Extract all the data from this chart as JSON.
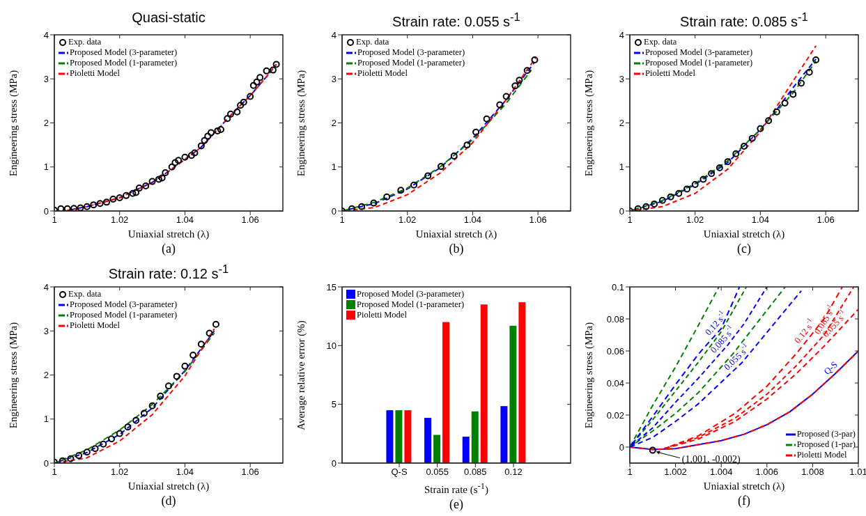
{
  "chart_data": [
    {
      "type": "line",
      "title": "Quasi-static",
      "xlabel": "Uniaxial stretch (λ)",
      "ylabel": "Engineering stress (MPa)",
      "xlim": [
        1,
        1.07
      ],
      "xticks": [
        1,
        1.02,
        1.04,
        1.06
      ],
      "ylim": [
        0,
        4
      ],
      "yticks": [
        0,
        1,
        2,
        3,
        4
      ],
      "legend": "top left",
      "annotations": [
        "(a)"
      ],
      "series": [
        {
          "name": "Exp. data",
          "type": "scatter",
          "marker": "circle",
          "color": "#000000",
          "x": [
            1,
            1.002,
            1.004,
            1.006,
            1.008,
            1.01,
            1.012,
            1.014,
            1.016,
            1.018,
            1.02,
            1.022,
            1.024,
            1.025,
            1.026,
            1.028,
            1.03,
            1.032,
            1.033,
            1.034,
            1.036,
            1.037,
            1.038,
            1.04,
            1.042,
            1.043,
            1.045,
            1.046,
            1.047,
            1.048,
            1.05,
            1.051,
            1.053,
            1.054,
            1.056,
            1.057,
            1.058,
            1.06,
            1.061,
            1.062,
            1.063,
            1.065,
            1.067,
            1.068
          ],
          "values": [
            0.02,
            0.05,
            0.05,
            0.06,
            0.07,
            0.1,
            0.14,
            0.17,
            0.2,
            0.27,
            0.3,
            0.35,
            0.4,
            0.42,
            0.52,
            0.57,
            0.67,
            0.72,
            0.75,
            0.87,
            1.0,
            1.1,
            1.15,
            1.22,
            1.26,
            1.32,
            1.48,
            1.6,
            1.7,
            1.78,
            1.82,
            1.85,
            2.1,
            2.2,
            2.25,
            2.4,
            2.47,
            2.6,
            2.85,
            2.93,
            3.03,
            3.18,
            3.2,
            3.33
          ]
        },
        {
          "name": "Proposed Model (3-parameter)",
          "color": "#0000ff",
          "line_style": "dashed",
          "x": [
            1.003,
            1.01,
            1.02,
            1.03,
            1.035,
            1.04,
            1.045,
            1.05,
            1.055,
            1.06,
            1.065,
            1.068
          ],
          "values": [
            0,
            0.1,
            0.3,
            0.65,
            0.9,
            1.17,
            1.45,
            1.85,
            2.25,
            2.62,
            3.05,
            3.33
          ]
        },
        {
          "name": "Proposed Model (1-parameter)",
          "color": "#008000",
          "line_style": "dashed"
        },
        {
          "name": "Pioletti Model",
          "color": "#ff0000",
          "line_style": "dashed",
          "x": [
            1.003,
            1.01,
            1.02,
            1.03,
            1.035,
            1.04,
            1.045,
            1.05,
            1.055,
            1.06,
            1.065,
            1.068
          ],
          "values": [
            0,
            0.1,
            0.3,
            0.65,
            0.9,
            1.17,
            1.45,
            1.85,
            2.25,
            2.62,
            3.05,
            3.33
          ]
        }
      ]
    },
    {
      "type": "line",
      "title": "Strain rate: 0.055 s$^{-1}$",
      "xlabel": "Uniaxial stretch (λ)",
      "ylabel": "Engineering stress (MPa)",
      "xlim": [
        1,
        1.07
      ],
      "xticks": [
        1,
        1.02,
        1.04,
        1.06
      ],
      "ylim": [
        0,
        4
      ],
      "yticks": [
        0,
        1,
        2,
        3,
        4
      ],
      "legend": "top left",
      "annotations": [
        "(b)"
      ],
      "series": [
        {
          "name": "Exp. data",
          "type": "scatter",
          "marker": "circle",
          "color": "#000000",
          "x": [
            1,
            1.003,
            1.006,
            1.0097,
            1.0137,
            1.018,
            1.022,
            1.0263,
            1.0303,
            1.0343,
            1.0383,
            1.041,
            1.0443,
            1.0483,
            1.0503,
            1.053,
            1.0543,
            1.0567,
            1.059
          ],
          "values": [
            0,
            0.05,
            0.1,
            0.18,
            0.32,
            0.47,
            0.59,
            0.8,
            1.01,
            1.25,
            1.5,
            1.79,
            2.09,
            2.41,
            2.6,
            2.84,
            2.97,
            3.19,
            3.43
          ]
        },
        {
          "name": "Proposed Model (3-parameter)",
          "color": "#0000ff",
          "line_style": "dashed",
          "x": [
            1,
            1.01,
            1.02,
            1.03,
            1.04,
            1.05,
            1.059
          ],
          "values": [
            0,
            0.17,
            0.5,
            0.98,
            1.65,
            2.5,
            3.38
          ]
        },
        {
          "name": "Proposed Model (1-parameter)",
          "color": "#008000",
          "line_style": "dashed",
          "x": [
            1,
            1.01,
            1.02,
            1.03,
            1.04,
            1.05,
            1.058
          ],
          "values": [
            0,
            0.2,
            0.52,
            1.0,
            1.62,
            2.42,
            3.2
          ]
        },
        {
          "name": "Pioletti Model",
          "color": "#ff0000",
          "line_style": "dashed",
          "x": [
            1,
            1.01,
            1.02,
            1.03,
            1.04,
            1.05,
            1.0595
          ],
          "values": [
            0,
            0.08,
            0.37,
            0.86,
            1.55,
            2.5,
            3.5
          ]
        }
      ]
    },
    {
      "type": "line",
      "title": "Strain rate: 0.085 s$^{-1}$",
      "xlabel": "Uniaxial stretch (λ)",
      "ylabel": "Engineering stress (MPa)",
      "xlim": [
        1,
        1.07
      ],
      "xticks": [
        1,
        1.02,
        1.04,
        1.06
      ],
      "ylim": [
        0,
        4
      ],
      "yticks": [
        0,
        1,
        2,
        3,
        4
      ],
      "legend": "top left",
      "annotations": [
        "(c)"
      ],
      "series": [
        {
          "name": "Exp. data",
          "type": "scatter",
          "marker": "circle",
          "color": "#000000",
          "x": [
            1,
            1.0025,
            1.005,
            1.0075,
            1.01,
            1.0125,
            1.015,
            1.0175,
            1.02,
            1.0225,
            1.025,
            1.0275,
            1.03,
            1.0325,
            1.035,
            1.0375,
            1.04,
            1.0425,
            1.045,
            1.0475,
            1.05,
            1.0525,
            1.055,
            1.057
          ],
          "values": [
            0,
            0.05,
            0.1,
            0.16,
            0.24,
            0.32,
            0.4,
            0.5,
            0.6,
            0.72,
            0.85,
            0.98,
            1.12,
            1.3,
            1.47,
            1.65,
            1.87,
            2.05,
            2.25,
            2.45,
            2.65,
            2.9,
            3.15,
            3.43
          ]
        },
        {
          "name": "Proposed Model (3-parameter)",
          "color": "#0000ff",
          "line_style": "dashed",
          "x": [
            1,
            1.01,
            1.02,
            1.03,
            1.04,
            1.045,
            1.05,
            1.057
          ],
          "values": [
            0,
            0.22,
            0.6,
            1.1,
            1.85,
            2.3,
            2.8,
            3.45
          ]
        },
        {
          "name": "Proposed Model (1-parameter)",
          "color": "#008000",
          "line_style": "dashed",
          "x": [
            1,
            1.01,
            1.02,
            1.03,
            1.04,
            1.05,
            1.057
          ],
          "values": [
            0,
            0.24,
            0.62,
            1.14,
            1.85,
            2.68,
            3.4
          ]
        },
        {
          "name": "Pioletti Model",
          "color": "#ff0000",
          "line_style": "dashed",
          "x": [
            1,
            1.01,
            1.02,
            1.03,
            1.04,
            1.05,
            1.057
          ],
          "values": [
            0,
            0.1,
            0.4,
            0.95,
            1.8,
            2.95,
            3.75
          ]
        }
      ]
    },
    {
      "type": "line",
      "title": "Strain rate: 0.12 s$^{-1}$",
      "xlabel": "Uniaxial stretch (λ)",
      "ylabel": "Engineering stress (MPa)",
      "xlim": [
        1,
        1.07
      ],
      "xticks": [
        1,
        1.02,
        1.04,
        1.06
      ],
      "ylim": [
        0,
        4
      ],
      "yticks": [
        0,
        1,
        2,
        3,
        4
      ],
      "legend": "top left",
      "annotations": [
        "(d)"
      ],
      "series": [
        {
          "name": "Exp. data",
          "type": "scatter",
          "marker": "circle",
          "color": "#000000",
          "x": [
            1,
            1.0025,
            1.005,
            1.0075,
            1.01,
            1.0125,
            1.015,
            1.0175,
            1.02,
            1.0225,
            1.025,
            1.0275,
            1.03,
            1.0325,
            1.035,
            1.0375,
            1.04,
            1.0425,
            1.045,
            1.0475,
            1.0495
          ],
          "values": [
            0.02,
            0.05,
            0.1,
            0.17,
            0.25,
            0.33,
            0.43,
            0.55,
            0.67,
            0.82,
            0.97,
            1.13,
            1.3,
            1.52,
            1.75,
            1.97,
            2.2,
            2.45,
            2.7,
            2.95,
            3.15
          ]
        },
        {
          "name": "Proposed Model (3-parameter)",
          "color": "#0000ff",
          "line_style": "dashed",
          "x": [
            1,
            1.01,
            1.02,
            1.03,
            1.04,
            1.049
          ],
          "values": [
            0,
            0.24,
            0.65,
            1.25,
            2.1,
            3.0
          ]
        },
        {
          "name": "Proposed Model (1-parameter)",
          "color": "#008000",
          "line_style": "dashed",
          "x": [
            1,
            1.01,
            1.02,
            1.03,
            1.04,
            1.049
          ],
          "values": [
            0,
            0.3,
            0.75,
            1.33,
            2.08,
            2.95
          ]
        },
        {
          "name": "Pioletti Model",
          "color": "#ff0000",
          "line_style": "dashed",
          "x": [
            1,
            1.01,
            1.02,
            1.03,
            1.04,
            1.049
          ],
          "values": [
            0,
            0.12,
            0.5,
            1.1,
            1.98,
            3.05
          ]
        }
      ]
    },
    {
      "type": "bar",
      "xlabel": "Strain rate (s$^{-1}$)",
      "ylabel": "Average relative error (%)",
      "categories": [
        "Q-S",
        "0.055",
        "0.085",
        "0.12"
      ],
      "ylim": [
        0,
        15
      ],
      "yticks": [
        0,
        5,
        10,
        15
      ],
      "legend": "top left",
      "annotations": [
        "(e)"
      ],
      "series": [
        {
          "name": "Proposed Model (3-parameter)",
          "color": "#0000ff",
          "values": [
            4.5,
            3.85,
            2.25,
            4.85
          ]
        },
        {
          "name": "Proposed Model (1-parameter)",
          "color": "#008000",
          "values": [
            4.5,
            2.4,
            4.4,
            11.7
          ]
        },
        {
          "name": "Pioletti Model",
          "color": "#ff0000",
          "values": [
            4.5,
            12.0,
            13.5,
            13.7
          ]
        }
      ]
    },
    {
      "type": "line",
      "xlabel": "Uniaxial stretch (λ)",
      "ylabel": "Engineering stress (MPa)",
      "xlim": [
        1,
        1.01
      ],
      "xticks": [
        1,
        1.002,
        1.004,
        1.006,
        1.008,
        1.01
      ],
      "ylim": [
        -0.01,
        0.1
      ],
      "yticks": [
        0,
        0.02,
        0.04,
        0.06,
        0.08,
        0.1
      ],
      "legend": "bottom right",
      "annotations": [
        "(f)",
        {
          "text": "0.12 s$^{-1}$",
          "x": 1.004,
          "y": 0.074
        },
        {
          "text": "0.085 s$^{-1}$",
          "x": 1.0043,
          "y": 0.064
        },
        {
          "text": "0.055 s$^{-1}$",
          "x": 1.0049,
          "y": 0.0526
        },
        {
          "text": "0.12 s$^{-1}$",
          "x": 1.0079,
          "y": 0.0693
        },
        {
          "text": "0.085 s$^{-1}$",
          "x": 1.0088,
          "y": 0.0769
        },
        {
          "text": "0.055 s$^{-1}$",
          "x": 1.0092,
          "y": 0.0737
        },
        {
          "text": "Q-S",
          "x": 1.009,
          "y": 0.046
        },
        {
          "text": "(1.001, -0.002)",
          "x": 1.001,
          "y": -0.002
        }
      ],
      "series": [
        {
          "name": "Proposed (3-par)",
          "color": "#0000ff",
          "line_style": "solid",
          "x": [
            1,
            1.001,
            1.002,
            1.003,
            1.004,
            1.005,
            1.006,
            1.007,
            1.008,
            1.009,
            1.01
          ],
          "values": [
            0,
            -0.0015,
            -0.001,
            0.0015,
            0.004,
            0.008,
            0.014,
            0.022,
            0.033,
            0.046,
            0.06
          ]
        },
        {
          "name": "Proposed (1-par)",
          "color": "#008000",
          "line_style": "dashed",
          "x": [
            1,
            1.001,
            1.002,
            1.003,
            1.0039
          ],
          "values": [
            0,
            0.026,
            0.05,
            0.076,
            0.1
          ]
        },
        {
          "name": "Pioletti Model",
          "color": "#ff0000",
          "line_style": "dashed",
          "x": [
            1,
            1.001,
            1.002,
            1.003,
            1.004,
            1.005,
            1.006,
            1.007,
            1.008,
            1.009,
            1.01
          ],
          "values": [
            0,
            -0.0015,
            -0.001,
            0.0015,
            0.004,
            0.008,
            0.014,
            0.022,
            0.033,
            0.046,
            0.06
          ]
        },
        {
          "color": "#008000",
          "line_style": "dashed",
          "x": [
            1,
            1.001,
            1.002,
            1.003,
            1.004,
            1.0051
          ],
          "values": [
            0,
            0.017,
            0.035,
            0.053,
            0.072,
            0.1
          ]
        },
        {
          "color": "#008000",
          "line_style": "dashed",
          "x": [
            1,
            1.001,
            1.002,
            1.003,
            1.0045,
            1.0068
          ],
          "values": [
            0,
            0.01,
            0.021,
            0.034,
            0.058,
            0.1
          ]
        },
        {
          "color": "#0000ff",
          "line_style": "dashed",
          "x": [
            1,
            1.001,
            1.002,
            1.003,
            1.004,
            1.0048
          ],
          "values": [
            0,
            0.019,
            0.039,
            0.058,
            0.074,
            0.1
          ]
        },
        {
          "color": "#0000ff",
          "line_style": "dashed",
          "x": [
            1,
            1.001,
            1.002,
            1.003,
            1.0043,
            1.005,
            1.006
          ],
          "values": [
            0,
            0.012,
            0.028,
            0.043,
            0.064,
            0.077,
            0.1
          ]
        },
        {
          "color": "#0000ff",
          "line_style": "dashed",
          "x": [
            1,
            1.001,
            1.002,
            1.003,
            1.0049,
            1.0075
          ],
          "values": [
            0,
            0.006,
            0.016,
            0.027,
            0.0526,
            0.0975
          ]
        },
        {
          "color": "#ff0000",
          "line_style": "dashed",
          "x": [
            1.0015,
            1.003,
            1.0046,
            1.006,
            1.0073,
            1.0085,
            1.0093
          ],
          "values": [
            -0.001,
            0.007,
            0.021,
            0.038,
            0.0586,
            0.08,
            0.1
          ]
        },
        {
          "color": "#ff0000",
          "line_style": "dashed",
          "x": [
            1.0015,
            1.003,
            1.0046,
            1.006,
            1.0073,
            1.0085,
            1.0098
          ],
          "values": [
            -0.001,
            0.006,
            0.018,
            0.033,
            0.051,
            0.07,
            0.1
          ]
        },
        {
          "color": "#ff0000",
          "line_style": "dashed",
          "x": [
            1.0015,
            1.003,
            1.0046,
            1.006,
            1.0073,
            1.0085,
            1.01
          ],
          "values": [
            -0.001,
            0.005,
            0.016,
            0.03,
            0.046,
            0.063,
            0.086
          ]
        },
        {
          "type": "scatter",
          "marker": "circle",
          "color": "#000000",
          "x": [
            1.001
          ],
          "values": [
            -0.002
          ]
        }
      ]
    }
  ]
}
